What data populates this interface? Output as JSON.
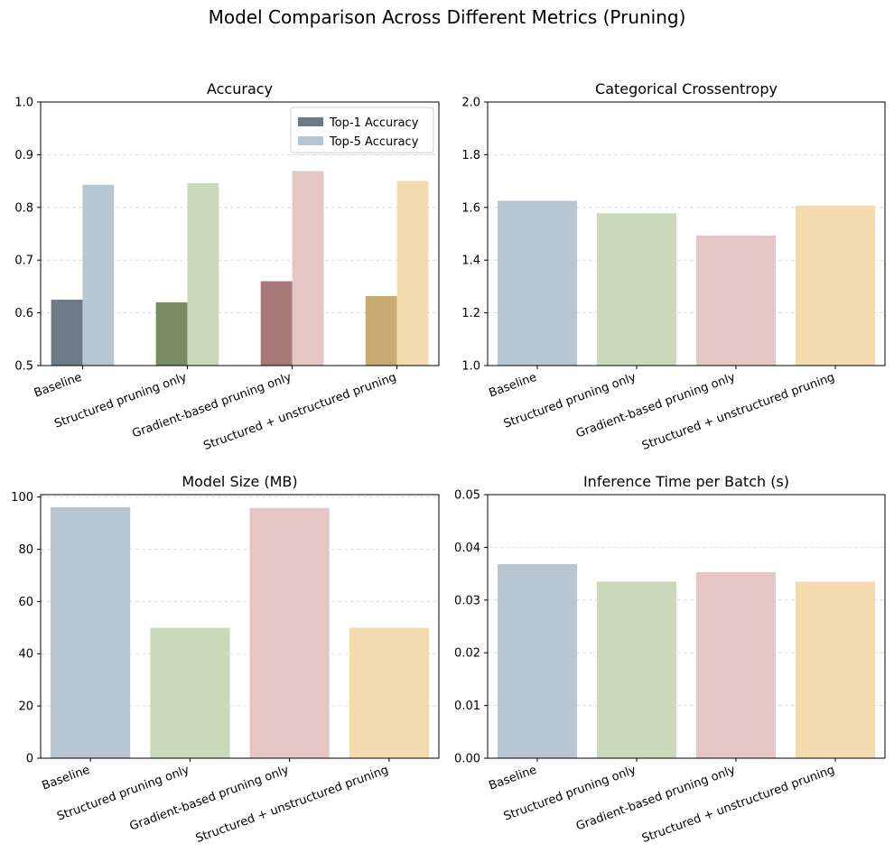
{
  "figure": {
    "title": "Model Comparison Across Different Metrics (Pruning)"
  },
  "chart_data": [
    {
      "type": "bar",
      "title": "Accuracy",
      "xlabel": "",
      "ylabel": "",
      "categories": [
        "Baseline",
        "Structured pruning only",
        "Gradient-based pruning only",
        "Structured + unstructured pruning"
      ],
      "series": [
        {
          "name": "Top-1 Accuracy",
          "values": [
            0.625,
            0.62,
            0.66,
            0.632
          ],
          "colors": [
            "#6e7b87",
            "#7a8c63",
            "#a77878",
            "#c8aa73"
          ]
        },
        {
          "name": "Top-5 Accuracy",
          "values": [
            0.843,
            0.846,
            0.869,
            0.85
          ],
          "colors": [
            "#b8c6d1",
            "#c9d9b9",
            "#e6c5c5",
            "#f3dbad"
          ]
        }
      ],
      "ylim": [
        0.5,
        1.0
      ],
      "yticks": [
        "0.5",
        "0.6",
        "0.7",
        "0.8",
        "0.9",
        "1.0"
      ],
      "grid": "y-dashed",
      "legend": "top-right",
      "legend_colors": [
        "#6e7b87",
        "#b8c6d1"
      ]
    },
    {
      "type": "bar",
      "title": "Categorical Crossentropy",
      "xlabel": "",
      "ylabel": "",
      "categories": [
        "Baseline",
        "Structured pruning only",
        "Gradient-based pruning only",
        "Structured + unstructured pruning"
      ],
      "values": [
        1.625,
        1.578,
        1.493,
        1.607
      ],
      "colors": [
        "#b8c6d1",
        "#c9d9b9",
        "#e6c5c5",
        "#f3dbad"
      ],
      "ylim": [
        1.0,
        2.0
      ],
      "yticks": [
        "1.0",
        "1.2",
        "1.4",
        "1.6",
        "1.8",
        "2.0"
      ],
      "grid": "y-dashed"
    },
    {
      "type": "bar",
      "title": "Model Size (MB)",
      "xlabel": "",
      "ylabel": "",
      "categories": [
        "Baseline",
        "Structured pruning only",
        "Gradient-based pruning only",
        "Structured + unstructured pruning"
      ],
      "values": [
        96.1,
        49.9,
        95.8,
        49.9
      ],
      "colors": [
        "#b8c6d1",
        "#c9d9b9",
        "#e6c5c5",
        "#f3dbad"
      ],
      "ylim": [
        0,
        100.9
      ],
      "yticks": [
        "0",
        "20",
        "40",
        "60",
        "80",
        "100"
      ],
      "ytick_values": [
        0,
        20,
        40,
        60,
        80,
        100
      ],
      "grid": "y-dashed"
    },
    {
      "type": "bar",
      "title": "Inference Time per Batch (s)",
      "xlabel": "",
      "ylabel": "",
      "categories": [
        "Baseline",
        "Structured pruning only",
        "Gradient-based pruning only",
        "Structured + unstructured pruning"
      ],
      "values": [
        0.0368,
        0.0335,
        0.0353,
        0.0335
      ],
      "colors": [
        "#b8c6d1",
        "#c9d9b9",
        "#e6c5c5",
        "#f3dbad"
      ],
      "ylim": [
        0.0,
        0.05
      ],
      "yticks": [
        "0.00",
        "0.01",
        "0.02",
        "0.03",
        "0.04",
        "0.05"
      ],
      "grid": "y-dashed"
    }
  ]
}
